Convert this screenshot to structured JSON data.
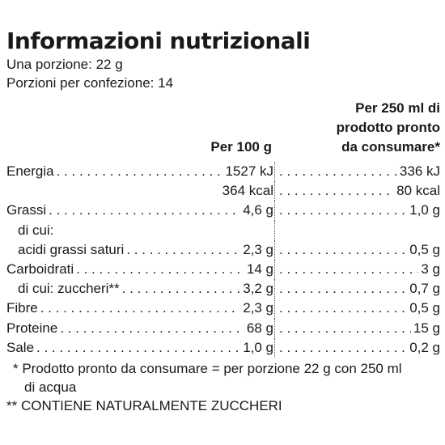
{
  "title": "Informazioni nutrizionali",
  "serving": "Una porzione: 22 g",
  "servings_per_pack": "Porzioni per confezione: 14",
  "headers": {
    "per100": "Per 100 g",
    "per250_lines": [
      "Per 250 ml di",
      "prodotto pronto",
      "da consumare*"
    ]
  },
  "rows": [
    {
      "label": "Energia",
      "v1": "1527 kJ",
      "v2": "336 kJ",
      "leader1": true,
      "leader2": true
    },
    {
      "label": "",
      "v1": "364 kcal",
      "v2": "80 kcal",
      "leader1": false,
      "leader2": true
    },
    {
      "label": "Grassi",
      "v1": "4,6 g",
      "v2": "1,0 g",
      "leader1": true,
      "leader2": true
    },
    {
      "label": "di cui:",
      "v1": "",
      "v2": "",
      "indent": true,
      "leader1": false,
      "leader2": false
    },
    {
      "label": "acidi grassi saturi",
      "v1": "2,3 g",
      "v2": "0,5 g",
      "indent": true,
      "leader1": true,
      "leader2": true
    },
    {
      "label": "Carboidrati",
      "v1": "14 g",
      "v2": "3 g",
      "leader1": true,
      "leader2": true
    },
    {
      "label": "di cui: zuccheri**",
      "v1": "3,2 g",
      "v2": "0,7 g",
      "indent": true,
      "leader1": true,
      "leader2": true
    },
    {
      "label": "Fibre",
      "v1": "2,3 g",
      "v2": "0,5 g",
      "leader1": true,
      "leader2": true
    },
    {
      "label": "Proteine",
      "v1": "68 g",
      "v2": "15 g",
      "leader1": true,
      "leader2": true
    },
    {
      "label": "Sale",
      "v1": "1,0 g",
      "v2": "0,2 g",
      "leader1": true,
      "leader2": true
    }
  ],
  "footnotes": {
    "note1_line1": "* Prodotto pronto da consumare = per porzione 22 g con 250 ml",
    "note1_line2": "di acqua",
    "note2": "** CONTIENE NATURALMENTE ZUCCHERI"
  }
}
